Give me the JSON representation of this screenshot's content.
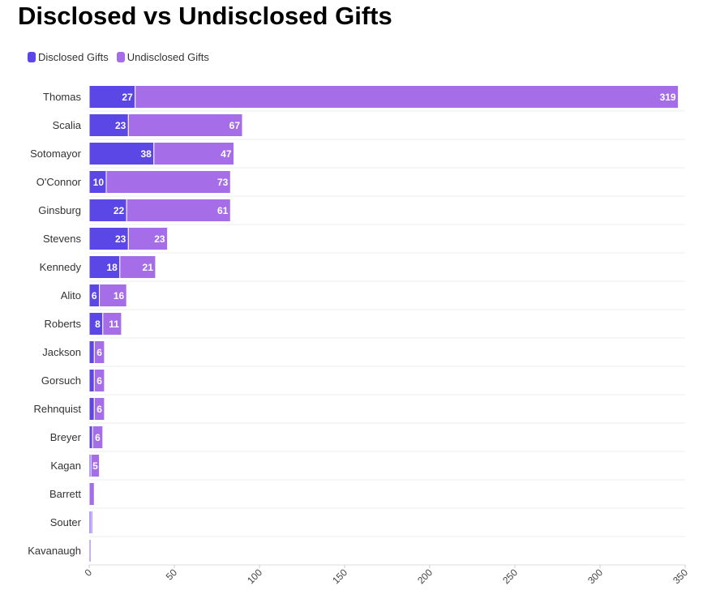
{
  "chart_data": {
    "type": "bar",
    "orientation": "horizontal",
    "stacked": true,
    "title": "Disclosed vs Undisclosed Gifts",
    "categories": [
      "Thomas",
      "Scalia",
      "Sotomayor",
      "O'Connor",
      "Ginsburg",
      "Stevens",
      "Kennedy",
      "Alito",
      "Roberts",
      "Jackson",
      "Gorsuch",
      "Rehnquist",
      "Breyer",
      "Kagan",
      "Barrett",
      "Souter",
      "Kavanaugh"
    ],
    "series": [
      {
        "name": "Disclosed Gifts",
        "color": "#5b47e6",
        "values": [
          27,
          23,
          38,
          10,
          22,
          23,
          18,
          6,
          8,
          3,
          3,
          3,
          2,
          1,
          0,
          1,
          0
        ],
        "labels": [
          "27",
          "23",
          "38",
          "10",
          "22",
          "23",
          "18",
          "6",
          "8",
          "",
          "",
          "",
          "",
          "",
          "",
          "",
          ""
        ]
      },
      {
        "name": "Undisclosed Gifts",
        "color": "#a56ee8",
        "values": [
          319,
          67,
          47,
          73,
          61,
          23,
          21,
          16,
          11,
          6,
          6,
          6,
          6,
          5,
          3,
          1,
          1
        ],
        "labels": [
          "319",
          "67",
          "47",
          "73",
          "61",
          "23",
          "21",
          "16",
          "11",
          "6",
          "6",
          "6",
          "6",
          "5",
          "",
          "",
          ""
        ]
      }
    ],
    "xlim": [
      0,
      350
    ],
    "xticks": [
      "0",
      "50",
      "100",
      "150",
      "200",
      "250",
      "300",
      "350"
    ],
    "legend_position": "top-left",
    "grid": true
  }
}
